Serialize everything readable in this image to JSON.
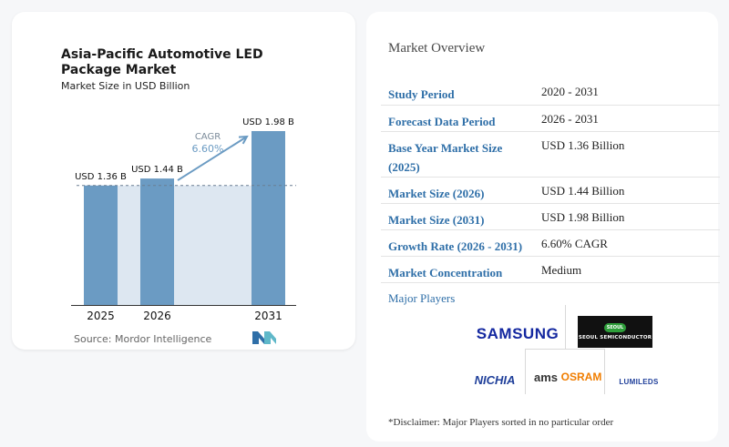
{
  "chart_data": {
    "type": "bar",
    "title": "Asia-Pacific Automotive LED Package Market",
    "subtitle": "Market Size in USD Billion",
    "categories": [
      "2025",
      "2026",
      "2031"
    ],
    "values": [
      1.36,
      1.44,
      1.98
    ],
    "value_labels": [
      "USD 1.36 B",
      "USD 1.44 B",
      "USD 1.98 B"
    ],
    "ylim": [
      0,
      2.1
    ],
    "cagr_label": "CAGR",
    "cagr_value": "6.60%",
    "bar_color": "#6b9bc3",
    "shade_color": "#dde7f1",
    "source": "Source: Mordor Intelligence"
  },
  "overview": {
    "title": "Market Overview",
    "rows": [
      {
        "label": "Study Period",
        "value": "2020 - 2031"
      },
      {
        "label": "Forecast Data Period",
        "value": "2026 - 2031"
      },
      {
        "label": "Base Year Market Size (2025)",
        "value": "USD 1.36 Billion"
      },
      {
        "label": "Market Size (2026)",
        "value": "USD 1.44 Billion"
      },
      {
        "label": "Market Size (2031)",
        "value": "USD 1.98 Billion"
      },
      {
        "label": "Growth Rate (2026 - 2031)",
        "value": "6.60% CAGR"
      },
      {
        "label": "Market Concentration",
        "value": "Medium"
      }
    ]
  },
  "players": {
    "title": "Major Players",
    "names": {
      "samsung": "SAMSUNG",
      "seoul_badge": "SEOUL",
      "seoul": "SEOUL SEMICONDUCTOR",
      "nichia": "NICHIA",
      "ams": "ams",
      "osram": "OSRAM",
      "lumileds": "LUMILEDS"
    },
    "disclaimer": "*Disclaimer: Major Players sorted in no particular order"
  }
}
